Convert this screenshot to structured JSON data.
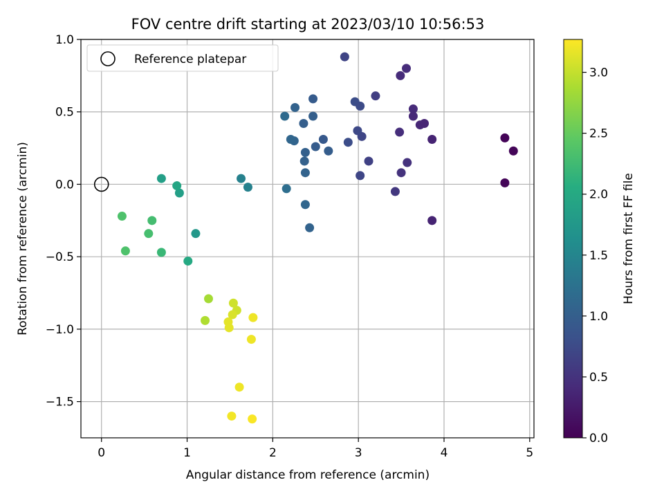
{
  "chart_data": {
    "type": "scatter",
    "title": "FOV centre drift starting at 2023/03/10 10:56:53",
    "xlabel": "Angular distance from reference (arcmin)",
    "ylabel": "Rotation from reference (arcmin)",
    "xlim": [
      -0.24,
      5.05
    ],
    "ylim": [
      -1.75,
      1.0
    ],
    "xticks": [
      0,
      1,
      2,
      3,
      4,
      5
    ],
    "xtick_labels": [
      "0",
      "1",
      "2",
      "3",
      "4",
      "5"
    ],
    "yticks": [
      1.0,
      0.5,
      0.0,
      -0.5,
      -1.0,
      -1.5
    ],
    "ytick_labels": [
      "1.0",
      "0.5",
      "0.0",
      "−0.5",
      "−1.0",
      "−1.5"
    ],
    "grid": true,
    "legend": {
      "position": "top-left",
      "entries": [
        "Reference platepar"
      ]
    },
    "reference_point": {
      "x": 0.0,
      "y": 0.0,
      "label": "Reference platepar"
    },
    "colorbar": {
      "label": "Hours from first FF file",
      "colormap": "viridis",
      "range": [
        0.0,
        3.27
      ],
      "ticks": [
        0.0,
        0.5,
        1.0,
        1.5,
        2.0,
        2.5,
        3.0
      ],
      "tick_labels": [
        "0.0",
        "0.5",
        "1.0",
        "1.5",
        "2.0",
        "2.5",
        "3.0"
      ]
    },
    "points": [
      {
        "x": 4.71,
        "y": 0.32,
        "c": 0.03
      },
      {
        "x": 4.81,
        "y": 0.23,
        "c": 0.05
      },
      {
        "x": 4.71,
        "y": 0.01,
        "c": 0.04
      },
      {
        "x": 3.86,
        "y": 0.31,
        "c": 0.35
      },
      {
        "x": 3.86,
        "y": -0.25,
        "c": 0.35
      },
      {
        "x": 3.72,
        "y": 0.41,
        "c": 0.38
      },
      {
        "x": 3.77,
        "y": 0.42,
        "c": 0.36
      },
      {
        "x": 3.64,
        "y": 0.52,
        "c": 0.42
      },
      {
        "x": 3.64,
        "y": 0.47,
        "c": 0.4
      },
      {
        "x": 3.56,
        "y": 0.8,
        "c": 0.44
      },
      {
        "x": 3.49,
        "y": 0.75,
        "c": 0.43
      },
      {
        "x": 3.48,
        "y": 0.36,
        "c": 0.45
      },
      {
        "x": 3.57,
        "y": 0.15,
        "c": 0.49
      },
      {
        "x": 3.5,
        "y": 0.08,
        "c": 0.5
      },
      {
        "x": 3.43,
        "y": -0.05,
        "c": 0.55
      },
      {
        "x": 3.2,
        "y": 0.61,
        "c": 0.62
      },
      {
        "x": 3.12,
        "y": 0.16,
        "c": 0.65
      },
      {
        "x": 3.04,
        "y": 0.33,
        "c": 0.7
      },
      {
        "x": 3.02,
        "y": 0.06,
        "c": 0.7
      },
      {
        "x": 2.99,
        "y": 0.37,
        "c": 0.73
      },
      {
        "x": 2.96,
        "y": 0.57,
        "c": 0.77
      },
      {
        "x": 3.02,
        "y": 0.54,
        "c": 0.75
      },
      {
        "x": 2.88,
        "y": 0.29,
        "c": 0.78
      },
      {
        "x": 2.84,
        "y": 0.88,
        "c": 0.68
      },
      {
        "x": 2.65,
        "y": 0.23,
        "c": 0.98
      },
      {
        "x": 2.59,
        "y": 0.31,
        "c": 0.92
      },
      {
        "x": 2.5,
        "y": 0.26,
        "c": 0.97
      },
      {
        "x": 2.47,
        "y": 0.59,
        "c": 0.95
      },
      {
        "x": 2.47,
        "y": 0.47,
        "c": 1.0
      },
      {
        "x": 2.43,
        "y": -0.3,
        "c": 1.05
      },
      {
        "x": 2.38,
        "y": 0.22,
        "c": 1.02
      },
      {
        "x": 2.38,
        "y": 0.08,
        "c": 1.05
      },
      {
        "x": 2.38,
        "y": -0.14,
        "c": 1.1
      },
      {
        "x": 2.37,
        "y": 0.16,
        "c": 1.03
      },
      {
        "x": 2.36,
        "y": 0.42,
        "c": 1.0
      },
      {
        "x": 2.26,
        "y": 0.53,
        "c": 1.05
      },
      {
        "x": 2.25,
        "y": 0.3,
        "c": 1.07
      },
      {
        "x": 2.21,
        "y": 0.31,
        "c": 1.1
      },
      {
        "x": 2.14,
        "y": 0.47,
        "c": 1.15
      },
      {
        "x": 2.16,
        "y": -0.03,
        "c": 1.2
      },
      {
        "x": 1.63,
        "y": 0.04,
        "c": 1.45
      },
      {
        "x": 1.71,
        "y": -0.02,
        "c": 1.45
      },
      {
        "x": 1.1,
        "y": -0.34,
        "c": 1.75
      },
      {
        "x": 0.91,
        "y": -0.06,
        "c": 1.85
      },
      {
        "x": 0.88,
        "y": -0.01,
        "c": 1.95
      },
      {
        "x": 0.7,
        "y": 0.04,
        "c": 1.85
      },
      {
        "x": 1.01,
        "y": -0.53,
        "c": 2.0
      },
      {
        "x": 0.7,
        "y": -0.47,
        "c": 2.2
      },
      {
        "x": 0.59,
        "y": -0.25,
        "c": 2.28
      },
      {
        "x": 0.55,
        "y": -0.34,
        "c": 2.3
      },
      {
        "x": 0.24,
        "y": -0.22,
        "c": 2.35
      },
      {
        "x": 0.28,
        "y": -0.46,
        "c": 2.35
      },
      {
        "x": 1.25,
        "y": -0.79,
        "c": 2.85
      },
      {
        "x": 1.21,
        "y": -0.94,
        "c": 2.9
      },
      {
        "x": 1.54,
        "y": -0.82,
        "c": 3.05
      },
      {
        "x": 1.58,
        "y": -0.87,
        "c": 3.05
      },
      {
        "x": 1.53,
        "y": -0.9,
        "c": 3.1
      },
      {
        "x": 1.48,
        "y": -0.95,
        "c": 3.15
      },
      {
        "x": 1.49,
        "y": -0.99,
        "c": 3.15
      },
      {
        "x": 1.77,
        "y": -0.92,
        "c": 3.2
      },
      {
        "x": 1.75,
        "y": -1.07,
        "c": 3.2
      },
      {
        "x": 1.61,
        "y": -1.4,
        "c": 3.2
      },
      {
        "x": 1.52,
        "y": -1.6,
        "c": 3.22
      },
      {
        "x": 1.76,
        "y": -1.62,
        "c": 3.25
      }
    ]
  }
}
